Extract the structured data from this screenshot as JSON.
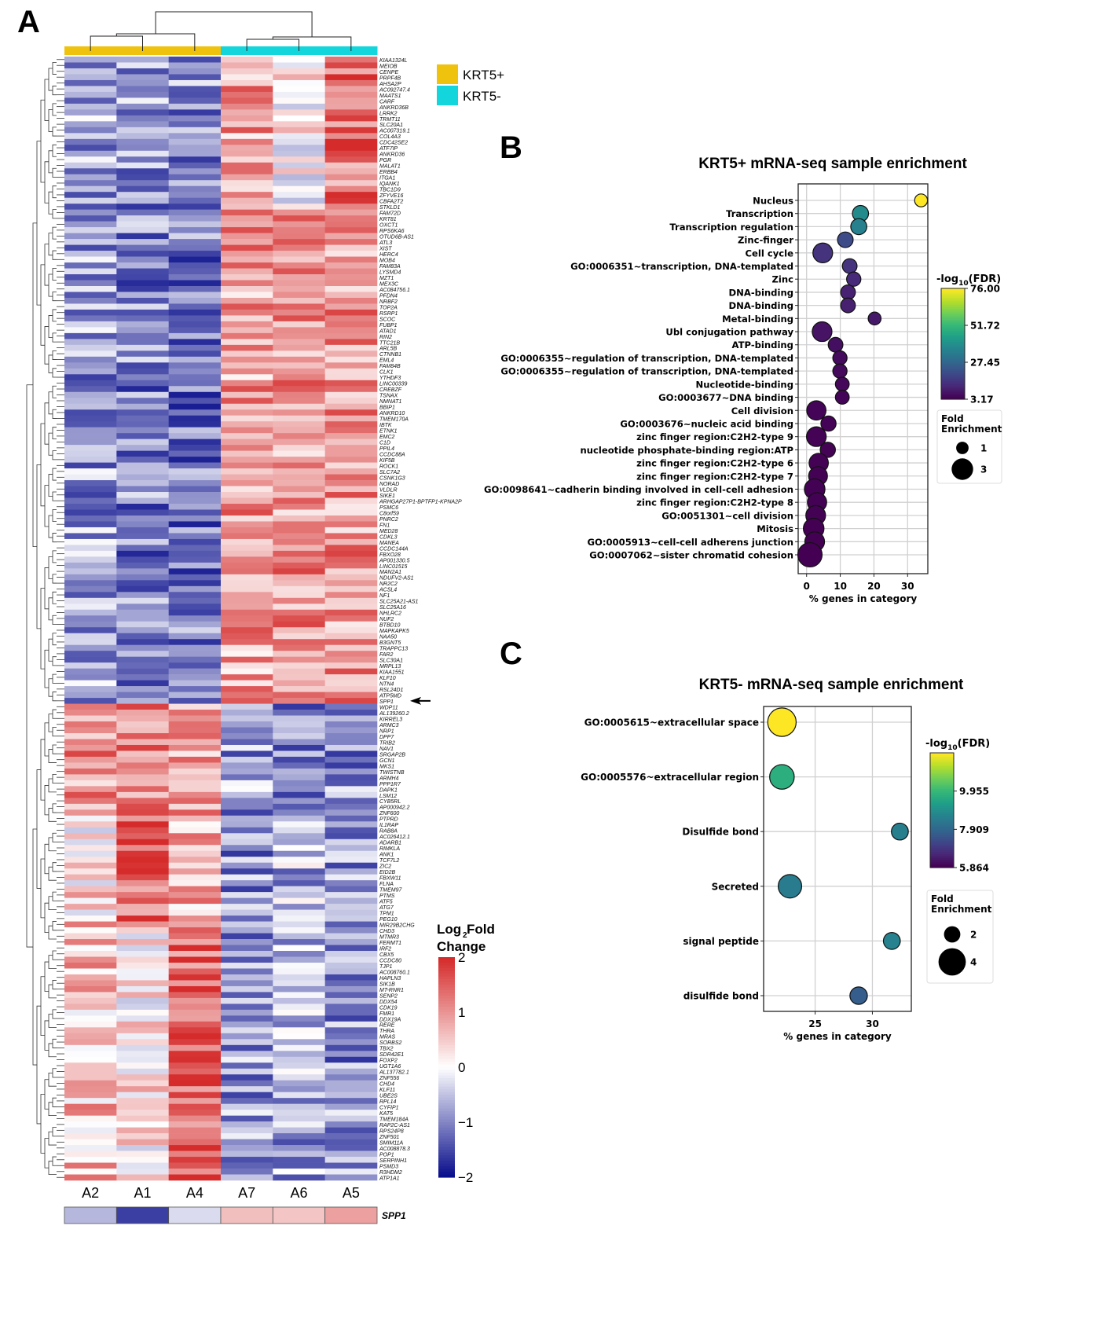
{
  "panels": {
    "a": "A",
    "b": "B",
    "c": "C"
  },
  "chart_data": [
    {
      "type": "heatmap",
      "panel": "A",
      "title": "",
      "columns": [
        "A2",
        "A1",
        "A4",
        "A7",
        "A6",
        "A5"
      ],
      "column_groups": [
        "KRT5+",
        "KRT5+",
        "KRT5+",
        "KRT5-",
        "KRT5-",
        "KRT5-"
      ],
      "legend_groups": [
        {
          "label": "KRT5+",
          "color": "#efc20d"
        },
        {
          "label": "KRT5-",
          "color": "#12d6dc"
        }
      ],
      "colorbar": {
        "title_line1": "Log",
        "title_sub": "2",
        "title_rest": " Fold",
        "title_line2": "Change",
        "range": [
          -2,
          2
        ],
        "ticks": [
          "2",
          "1",
          "0",
          "−1",
          "−2"
        ],
        "tick_values": [
          2,
          1,
          0,
          -1,
          -2
        ],
        "low_color": "#0a0f8c",
        "mid_color": "#ffffff",
        "high_color": "#d52b2b"
      },
      "highlight_gene": "SPP1",
      "highlight_marker": "arrow-left",
      "spp1_row": {
        "label": "SPP1",
        "values": [
          -0.6,
          -1.6,
          -0.3,
          0.6,
          0.55,
          0.9
        ]
      },
      "genes": [
        "KIAA1324L",
        "MEIOB",
        "CENPE",
        "PRPF4B",
        "AHSA2P",
        "AC092747.4",
        "MAATS1",
        "CARF",
        "ANKRD36B",
        "LRRK2",
        "TRMT11",
        "SLC20A1",
        "AC007319.1",
        "COL4A3",
        "CDC42SE2",
        "ATF7IP",
        "ANKRD36",
        "PGR",
        "MALAT1",
        "ERBB4",
        "ITGA1",
        "IQANK1",
        "TBC1D9",
        "ZFYVE16",
        "CBFA2T2",
        "STKLD1",
        "FAM72D",
        "KRT81",
        "OXCT1",
        "RPS6KA6",
        "OTUD6B-AS1",
        "ATL3",
        "XIST",
        "HERC4",
        "MOB4",
        "FAM83A",
        "LYSMD4",
        "MZT1",
        "MEX3C",
        "AC084756.1",
        "PFDN4",
        "NRBF2",
        "TOP2A",
        "RSRP1",
        "SCOC",
        "FUBP1",
        "ATAD1",
        "RIN2",
        "TTC21B",
        "ARL5B",
        "CTNNB1",
        "EML4",
        "FAM84B",
        "CLK1",
        "YTHDF3",
        "LINC00339",
        "CREBZF",
        "TSNAX",
        "NMNAT1",
        "BBIP1",
        "ANKRD10",
        "TMEM170A",
        "IBTK",
        "ETNK1",
        "EMC2",
        "C1D",
        "PPIL4",
        "CCDC88A",
        "KIF5B",
        "ROCK1",
        "SLC7A2",
        "CSNK1G3",
        "NORAD",
        "VLDLR",
        "SIKE1",
        "ARHGAP27P1-BPTFP1-KPNA2P",
        "PSMC6",
        "C8orf59",
        "PNRC2",
        "FN1",
        "MED28",
        "CDKL3",
        "MANEA",
        "CCDC144A",
        "FBXO28",
        "AP001330.5",
        "LINC01515",
        "MAN2A1",
        "NDUFV2-AS1",
        "NR2C2",
        "ACSL4",
        "NF1",
        "SLC25A21-AS1",
        "SLC25A16",
        "NHLRC2",
        "NUF2",
        "BTBD10",
        "MAPKAPK5",
        "NAA50",
        "B3GNT5",
        "TRAPPC13",
        "FAR2",
        "SLC30A1",
        "MRPL13",
        "KIAA1551",
        "KLF10",
        "NTN4",
        "RSL24D1",
        "ATP5MD",
        "SPP1",
        "WDP11",
        "AL139260.2",
        "KIRREL3",
        "ARMC3",
        "NRP1",
        "DPP7",
        "TRIB2",
        "NAV1",
        "SRGAP2B",
        "GCN1",
        "MKS1",
        "TWISTNB",
        "ARMH4",
        "PPP1R7",
        "DAPK1",
        "LSM12",
        "CYB5RL",
        "AP000942.2",
        "ZNF600",
        "PTPRD",
        "IL1RAP",
        "RAB8A",
        "AC026412.1",
        "ADARB1",
        "RIMKLA",
        "ANK1",
        "TCF7L2",
        "ZIC2",
        "EID2B",
        "FBXW11",
        "FLNA",
        "TMEM97",
        "PTMS",
        "ATF5",
        "ATG7",
        "TPM1",
        "PEG10",
        "MIR29B2CHG",
        "CHD3",
        "MTMR3",
        "FERMT1",
        "IRF2",
        "CBX5",
        "CCDC80",
        "TJP1",
        "AC008760.1",
        "HAPLN3",
        "SIK1B",
        "MT-RNR1",
        "SENP2",
        "DDX54",
        "CDK19",
        "FMR1",
        "DDX19A",
        "RERE",
        "THRA",
        "MRAS",
        "SORBS2",
        "TBX2",
        "SDR42E1",
        "FOXP2",
        "UGT1A6",
        "AL137782.1",
        "ZNF556",
        "CHD4",
        "KLF11",
        "UBE2S",
        "RPL14",
        "CYFIP1",
        "KAT5",
        "TMEM184A",
        "RAP2C-AS1",
        "RPS24P8",
        "ZNF501",
        "SMIM11A",
        "AC008878.3",
        "POP1",
        "SERPINH1",
        "PSMD3",
        "R3HDM2",
        "ATP1A1"
      ],
      "blocks": [
        {
          "from": "KIAA1324L",
          "to": "CBFA2T2",
          "profile": [
            -0.7,
            -0.8,
            -0.9,
            0.9,
            0.1,
            1.3
          ]
        },
        {
          "from": "STKLD1",
          "to": "SPP1",
          "profile": [
            -0.8,
            -1.0,
            -1.1,
            0.9,
            1.0,
            1.0
          ]
        },
        {
          "from": "WDP11",
          "to": "ZNF600",
          "profile": [
            1.0,
            1.1,
            0.8,
            -0.8,
            -0.9,
            -0.9
          ]
        },
        {
          "from": "PTPRD",
          "to": "PEG10",
          "profile": [
            0.3,
            1.5,
            0.7,
            -0.9,
            -0.6,
            -0.8
          ]
        },
        {
          "from": "MIR29B2CHG",
          "to": "ATP1A1",
          "profile": [
            0.6,
            0.3,
            1.5,
            -0.8,
            -0.7,
            -0.9
          ]
        }
      ]
    },
    {
      "type": "scatter",
      "panel": "B",
      "title": "KRT5+ mRNA-seq sample enrichment",
      "xlabel": "% genes in category",
      "ylabel": "",
      "xlim": [
        -2.5,
        36
      ],
      "xticks": [
        0,
        10,
        20,
        30
      ],
      "grid": true,
      "color_label": "-log10(FDR)",
      "color_label_parts": {
        "pre": "-log",
        "sub": "10",
        "post": "(FDR)"
      },
      "color_range": [
        3.17,
        76.0
      ],
      "colorbar_ticks": [
        "76.00",
        "51.72",
        "27.45",
        "3.17"
      ],
      "colorbar_tick_values": [
        76.0,
        51.72,
        27.45,
        3.17
      ],
      "size_legend_title": [
        "Fold",
        "Enrichment"
      ],
      "size_legend": [
        {
          "label": "1",
          "value": 1
        },
        {
          "label": "3",
          "value": 3
        }
      ],
      "legend_placement": "right",
      "points": [
        {
          "term": "Nucleus",
          "pct": 34.0,
          "fdr": 76.0,
          "fold": 1.1
        },
        {
          "term": "Transcription",
          "pct": 16.0,
          "fdr": 38.0,
          "fold": 1.8
        },
        {
          "term": "Transcription regulation",
          "pct": 15.5,
          "fdr": 35.0,
          "fold": 1.8
        },
        {
          "term": "Zinc-finger",
          "pct": 11.5,
          "fdr": 20.0,
          "fold": 1.7
        },
        {
          "term": "Cell cycle",
          "pct": 4.8,
          "fdr": 14.0,
          "fold": 2.6
        },
        {
          "term": "GO:0006351~transcription, DNA-templated",
          "pct": 12.8,
          "fdr": 14.0,
          "fold": 1.5
        },
        {
          "term": "Zinc",
          "pct": 14.0,
          "fdr": 12.0,
          "fold": 1.4
        },
        {
          "term": "DNA-binding",
          "pct": 12.3,
          "fdr": 10.0,
          "fold": 1.5
        },
        {
          "term": "DNA-binding",
          "pct": 12.3,
          "fdr": 9.5,
          "fold": 1.5
        },
        {
          "term": "Metal-binding",
          "pct": 20.2,
          "fdr": 8.0,
          "fold": 1.1
        },
        {
          "term": "Ubl conjugation pathway",
          "pct": 4.6,
          "fdr": 7.0,
          "fold": 2.6
        },
        {
          "term": "ATP-binding",
          "pct": 8.6,
          "fdr": 6.0,
          "fold": 1.5
        },
        {
          "term": "GO:0006355~regulation of transcription, DNA-templated",
          "pct": 9.9,
          "fdr": 5.5,
          "fold": 1.4
        },
        {
          "term": "GO:0006355~regulation of transcription, DNA-templated",
          "pct": 9.9,
          "fdr": 5.0,
          "fold": 1.4
        },
        {
          "term": "Nucleotide-binding",
          "pct": 10.6,
          "fdr": 4.5,
          "fold": 1.3
        },
        {
          "term": "GO:0003677~DNA binding",
          "pct": 10.6,
          "fdr": 4.0,
          "fold": 1.3
        },
        {
          "term": "Cell division",
          "pct": 2.9,
          "fdr": 4.0,
          "fold": 2.5
        },
        {
          "term": "GO:0003676~nucleic acid binding",
          "pct": 6.5,
          "fdr": 3.6,
          "fold": 1.6
        },
        {
          "term": "zinc finger region:C2H2-type 9",
          "pct": 2.9,
          "fdr": 3.5,
          "fold": 2.6
        },
        {
          "term": "nucleotide phosphate-binding region:ATP",
          "pct": 6.3,
          "fdr": 3.5,
          "fold": 1.6
        },
        {
          "term": "zinc finger region:C2H2-type 6",
          "pct": 3.6,
          "fdr": 3.4,
          "fold": 2.5
        },
        {
          "term": "zinc finger region:C2H2-type 7",
          "pct": 3.4,
          "fdr": 3.4,
          "fold": 2.4
        },
        {
          "term": "GO:0098641~cadherin binding involved in cell-cell adhesion",
          "pct": 2.4,
          "fdr": 3.3,
          "fold": 2.8
        },
        {
          "term": "zinc finger region:C2H2-type 8",
          "pct": 3.1,
          "fdr": 3.3,
          "fold": 2.5
        },
        {
          "term": "GO:0051301~cell division",
          "pct": 2.7,
          "fdr": 3.3,
          "fold": 2.6
        },
        {
          "term": "Mitosis",
          "pct": 2.1,
          "fdr": 3.2,
          "fold": 2.8
        },
        {
          "term": "GO:0005913~cell-cell adherens junction",
          "pct": 2.4,
          "fdr": 3.2,
          "fold": 2.6
        },
        {
          "term": "GO:0007062~sister chromatid cohesion",
          "pct": 1.0,
          "fdr": 3.17,
          "fold": 3.6
        }
      ]
    },
    {
      "type": "scatter",
      "panel": "C",
      "title": "KRT5- mRNA-seq sample enrichment",
      "xlabel": "% genes in category",
      "ylabel": "",
      "xlim": [
        20.5,
        33.4
      ],
      "xticks": [
        25,
        30
      ],
      "grid": true,
      "color_label": "-log10(FDR)",
      "color_label_parts": {
        "pre": "-log",
        "sub": "10",
        "post": "(FDR)"
      },
      "color_range": [
        5.864,
        12.0
      ],
      "colorbar_ticks": [
        "9.955",
        "7.909",
        "5.864"
      ],
      "colorbar_tick_values": [
        9.955,
        7.909,
        5.864
      ],
      "size_legend_title": [
        "Fold",
        "Enrichment"
      ],
      "size_legend": [
        {
          "label": "2",
          "value": 2
        },
        {
          "label": "4",
          "value": 4
        }
      ],
      "legend_placement": "right",
      "points": [
        {
          "term": "GO:0005615~extracellular space",
          "pct": 22.1,
          "fdr": 12.0,
          "fold": 4.2
        },
        {
          "term": "GO:0005576~extracellular region",
          "pct": 22.1,
          "fdr": 9.7,
          "fold": 3.5
        },
        {
          "term": "Disulfide bond",
          "pct": 32.4,
          "fdr": 8.5,
          "fold": 2.1
        },
        {
          "term": "Secreted",
          "pct": 22.8,
          "fdr": 8.4,
          "fold": 3.3
        },
        {
          "term": "signal peptide",
          "pct": 31.7,
          "fdr": 8.6,
          "fold": 2.1
        },
        {
          "term": "disulfide bond",
          "pct": 28.8,
          "fdr": 7.7,
          "fold": 2.2
        }
      ]
    }
  ]
}
